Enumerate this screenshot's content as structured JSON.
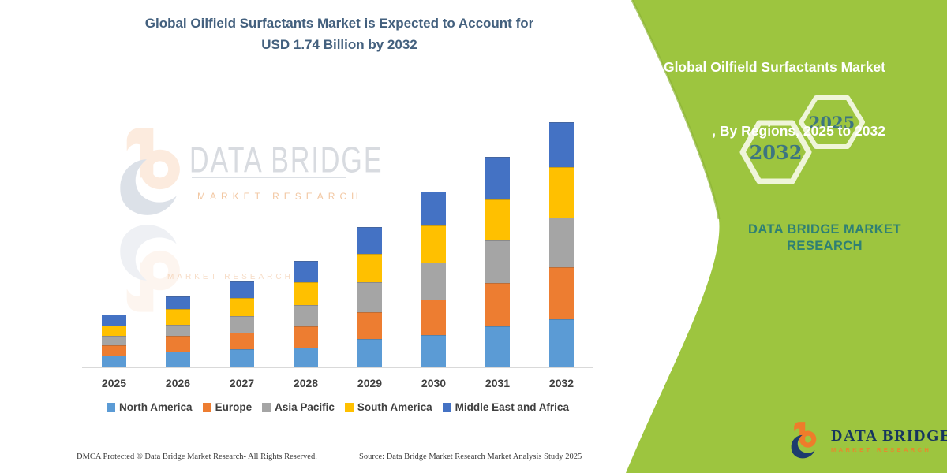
{
  "title": {
    "line1": "Global Oilfield Surfactants Market is Expected to Account for",
    "line2": "USD 1.74 Billion by 2032"
  },
  "chart_data": {
    "type": "bar",
    "stacked": true,
    "title": "Global Oilfield Surfactants Market is Expected to Account for USD 1.74 Billion by 2032",
    "unit": "USD Billion",
    "categories": [
      "2025",
      "2026",
      "2027",
      "2028",
      "2029",
      "2030",
      "2031",
      "2032"
    ],
    "series": [
      {
        "name": "North America",
        "color": "#5B9BD5",
        "values": [
          0.085,
          0.11,
          0.13,
          0.14,
          0.2,
          0.23,
          0.29,
          0.34
        ]
      },
      {
        "name": "Europe",
        "color": "#ED7D31",
        "values": [
          0.075,
          0.11,
          0.12,
          0.15,
          0.19,
          0.25,
          0.31,
          0.37
        ]
      },
      {
        "name": "Asia Pacific",
        "color": "#A5A5A5",
        "values": [
          0.065,
          0.08,
          0.12,
          0.15,
          0.21,
          0.26,
          0.3,
          0.35
        ]
      },
      {
        "name": "South America",
        "color": "#FFC000",
        "values": [
          0.075,
          0.11,
          0.13,
          0.16,
          0.2,
          0.26,
          0.29,
          0.36
        ]
      },
      {
        "name": "Middle East and Africa",
        "color": "#4472C4",
        "values": [
          0.08,
          0.09,
          0.12,
          0.15,
          0.19,
          0.24,
          0.3,
          0.32
        ]
      }
    ],
    "totals": [
      0.38,
      0.5,
      0.62,
      0.75,
      0.99,
      1.24,
      1.49,
      1.74
    ],
    "legend_position": "bottom",
    "gridlines": false,
    "y_axis_visible": false,
    "ylim": [
      0,
      1.85
    ]
  },
  "watermark": {
    "name": "DATA BRIDGE",
    "tagline": "MARKET RESEARCH"
  },
  "side_panel": {
    "title_line1": "Global Oilfield Surfactants Market",
    "title_line2": ", By Regions, 2025 to 2032",
    "hexagons": [
      {
        "label": "2032"
      },
      {
        "label": "2025"
      }
    ],
    "brand_line1": "DATA BRIDGE MARKET",
    "brand_line2": "RESEARCH"
  },
  "logo": {
    "name": "DATA BRIDGE",
    "tagline": "MARKET RESEARCH"
  },
  "footer": {
    "left": "DMCA Protected ® Data Bridge Market Research-  All Rights Reserved.",
    "right": "Source: Data Bridge Market Research  Market Analysis Study 2025"
  },
  "colors": {
    "green_panel": "#9dc53f",
    "green_panel_edge": "#8cb335",
    "panel_title_text": "#ffffff",
    "brand_teal": "#2f8073",
    "hex_outline": "#eff5d9",
    "hex_label": "#3d7580",
    "chart_title_blue": "#43607e",
    "axis_line": "#d9d9d9",
    "tick_label_gray": "#3f3f3f",
    "logo_navy": "#1c3c6e",
    "logo_orange": "#ee7c2b",
    "footer_gray": "#3b3b3b"
  }
}
